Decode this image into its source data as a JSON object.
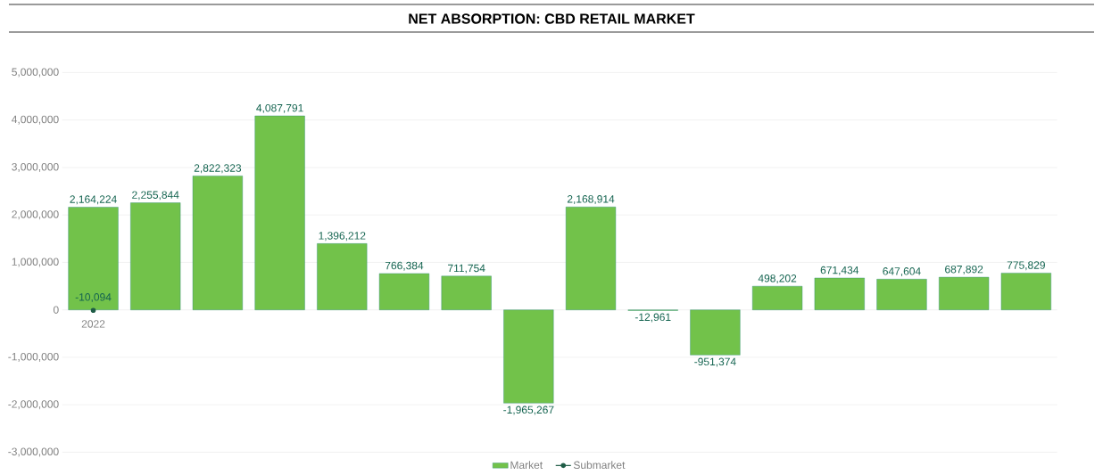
{
  "chart_data": {
    "type": "bar",
    "title": "NET ABSORPTION: CBD RETAIL MARKET",
    "categories": [
      "2022",
      null,
      null,
      null,
      null,
      null,
      null,
      null,
      null,
      null,
      null,
      null,
      null,
      null,
      null,
      null
    ],
    "series": [
      {
        "name": "Market",
        "color": "#72c24a",
        "values": [
          2164224,
          2255844,
          2822323,
          4087791,
          1396212,
          766384,
          711754,
          -1965267,
          2168914,
          -12961,
          -951374,
          498202,
          671434,
          647604,
          687892,
          775829
        ],
        "value_labels": [
          "2,164,224",
          "2,255,844",
          "2,822,323",
          "4,087,791",
          "1,396,212",
          "766,384",
          "711,754",
          "-1,965,267",
          "2,168,914",
          "-12,961",
          "-951,374",
          "498,202",
          "671,434",
          "647,604",
          "687,892",
          "775,829"
        ]
      },
      {
        "name": "Submarket",
        "type": "line",
        "color": "#1f5c46",
        "marker": "circle",
        "values": [
          -10094,
          null,
          null,
          null,
          null,
          null,
          null,
          null,
          null,
          null,
          null,
          null,
          null,
          null,
          null,
          null
        ],
        "value_labels": [
          "-10,094",
          null,
          null,
          null,
          null,
          null,
          null,
          null,
          null,
          null,
          null,
          null,
          null,
          null,
          null,
          null
        ]
      }
    ],
    "ylim": [
      -3000000,
      5000000
    ],
    "yticks": [
      {
        "value": -3000000,
        "label": "-3,000,000"
      },
      {
        "value": -2000000,
        "label": "-2,000,000"
      },
      {
        "value": -1000000,
        "label": "-1,000,000"
      },
      {
        "value": 0,
        "label": "0"
      },
      {
        "value": 1000000,
        "label": "1,000,000"
      },
      {
        "value": 2000000,
        "label": "2,000,000"
      },
      {
        "value": 3000000,
        "label": "3,000,000"
      },
      {
        "value": 4000000,
        "label": "4,000,000"
      },
      {
        "value": 5000000,
        "label": "5,000,000"
      }
    ],
    "grid": "y",
    "legend": "bottom"
  }
}
